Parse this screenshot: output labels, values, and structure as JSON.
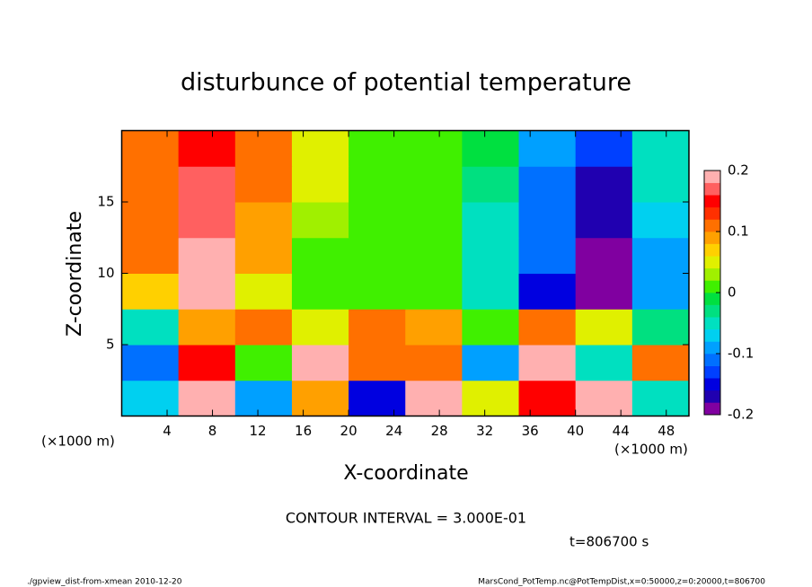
{
  "chart_data": {
    "type": "heatmap",
    "title": "disturbunce of potential temperature",
    "xlabel": "X-coordinate",
    "ylabel": "Z-coordinate",
    "axis_unit_label": "(×1000 m)",
    "contour_label": "CONTOUR INTERVAL = 3.000E-01",
    "time_label": "t=806700 s",
    "footer_left": "./gpview_dist-from-xmean  2010-12-20",
    "footer_right": "MarsCond_PotTemp.nc@PotTempDist,x=0:50000,z=0:20000,t=806700",
    "x": [
      2.5,
      7.5,
      12.5,
      17.5,
      22.5,
      27.5,
      32.5,
      37.5,
      42.5,
      47.5
    ],
    "y": [
      1.25,
      3.75,
      6.25,
      8.75,
      11.25,
      13.75,
      16.25,
      18.75
    ],
    "values": [
      [
        -0.08,
        0.22,
        -0.1,
        0.08,
        -0.15,
        0.22,
        0.05,
        0.15,
        0.18,
        -0.05
      ],
      [
        -0.12,
        0.15,
        0.02,
        0.18,
        0.1,
        0.12,
        -0.1,
        0.2,
        -0.05,
        0.1
      ],
      [
        -0.05,
        0.08,
        0.1,
        0.05,
        0.12,
        0.08,
        0.02,
        0.1,
        0.05,
        -0.03
      ],
      [
        0.06,
        0.22,
        0.05,
        0.02,
        0.0,
        0.0,
        -0.06,
        -0.16,
        -0.22,
        -0.1
      ],
      [
        0.1,
        0.19,
        0.08,
        0.02,
        0.0,
        0.01,
        -0.04,
        -0.12,
        -0.2,
        -0.1
      ],
      [
        0.12,
        0.17,
        0.09,
        0.03,
        0.01,
        0.01,
        -0.04,
        -0.12,
        -0.18,
        -0.08
      ],
      [
        0.12,
        0.16,
        0.1,
        0.04,
        0.02,
        0.0,
        -0.03,
        -0.12,
        -0.18,
        -0.06
      ],
      [
        0.12,
        0.15,
        0.1,
        0.04,
        0.02,
        0.0,
        -0.02,
        -0.1,
        -0.14,
        -0.04
      ]
    ],
    "xlim": [
      0,
      50
    ],
    "xticks": [
      4,
      8,
      12,
      16,
      20,
      24,
      28,
      32,
      36,
      40,
      44,
      48
    ],
    "ylim": [
      0,
      20
    ],
    "yticks": [
      5,
      10,
      15
    ],
    "clim": [
      -0.2,
      0.2
    ],
    "cticks": [
      -0.2,
      -0.1,
      0,
      0.1,
      0.2
    ],
    "colors": [
      "#8000a0",
      "#2000b0",
      "#0000e0",
      "#0040ff",
      "#0070ff",
      "#00a0ff",
      "#00d0f0",
      "#00e0c0",
      "#00e080",
      "#00e040",
      "#40f000",
      "#a0f000",
      "#e0f000",
      "#ffd000",
      "#ffa000",
      "#ff7000",
      "#ff3000",
      "#ff0000",
      "#ff6060",
      "#ffb0b0"
    ]
  }
}
